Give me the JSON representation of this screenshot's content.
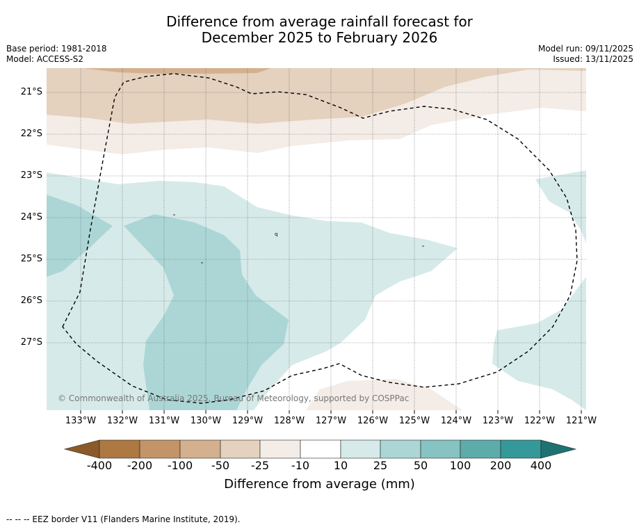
{
  "title": {
    "line1": "Difference from average rainfall forecast for",
    "line2": "December 2025 to February 2026"
  },
  "meta": {
    "base_period": "Base period: 1981-2018",
    "model": "Model: ACCESS-S2",
    "model_run": "Model run: 09/11/2025",
    "issued": "Issued: 13/11/2025"
  },
  "map": {
    "lat_labels": [
      "21°S",
      "22°S",
      "23°S",
      "24°S",
      "25°S",
      "26°S",
      "27°S"
    ],
    "lon_labels": [
      "133°W",
      "132°W",
      "131°W",
      "130°W",
      "129°W",
      "128°W",
      "127°W",
      "126°W",
      "125°W",
      "124°W",
      "123°W",
      "122°W",
      "121°W"
    ],
    "copyright": "© Commonwealth of Australia 2025, Bureau of Meteorology, supported by COSPPac"
  },
  "colorbar": {
    "ticks": [
      "-400",
      "-200",
      "-100",
      "-50",
      "-25",
      "-10",
      "10",
      "25",
      "50",
      "100",
      "200",
      "400"
    ],
    "colors": [
      "#8c5a28",
      "#ad7842",
      "#c39468",
      "#d4b08e",
      "#e4d1be",
      "#f4ece6",
      "#ffffff",
      "#d6eae9",
      "#acd6d6",
      "#86c3c2",
      "#5dacab",
      "#35999a",
      "#1f7272"
    ],
    "label": "Difference from average (mm)"
  },
  "footer": {
    "eez": "--  --  -- EEZ border V11 (Flanders Marine Institute, 2019)."
  }
}
